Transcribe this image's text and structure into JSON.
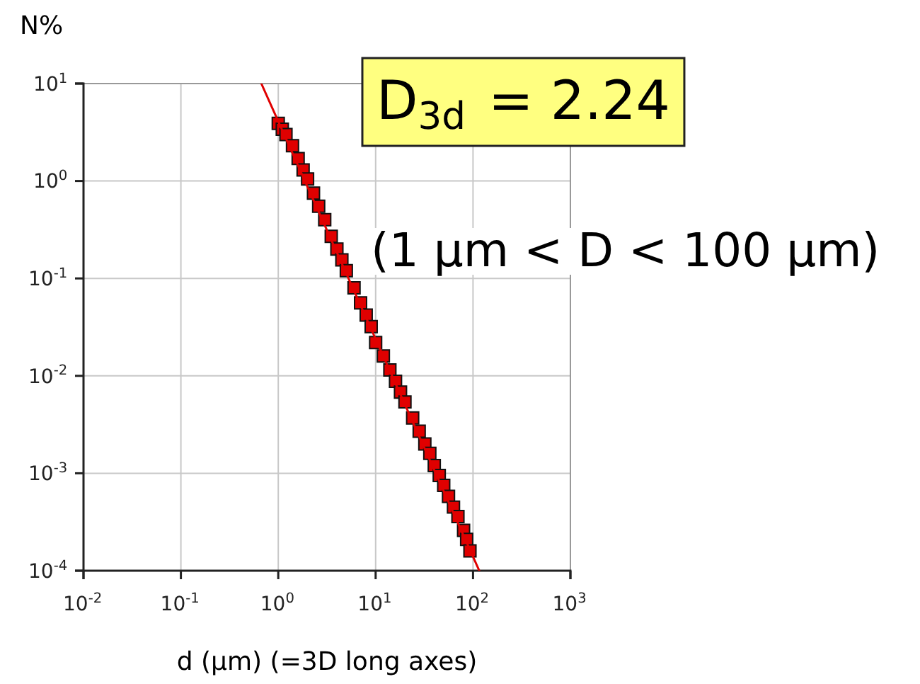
{
  "chart_data": {
    "type": "scatter",
    "ylabel": "N%",
    "xlabel": "d (μm) (=3D long axes)",
    "log": "xy",
    "grid": true,
    "marker": "square",
    "xlim": [
      0.01,
      1000
    ],
    "ylim": [
      0.0001,
      10
    ],
    "xticks": [
      {
        "value": 0.01,
        "label": "10$^{-2}$"
      },
      {
        "value": 0.1,
        "label": "10$^{-1}$"
      },
      {
        "value": 1,
        "label": "10$^{0}$"
      },
      {
        "value": 10,
        "label": "10$^{1}$"
      },
      {
        "value": 100,
        "label": "10$^{2}$"
      },
      {
        "value": 1000,
        "label": "10$^{3}$"
      }
    ],
    "yticks": [
      {
        "value": 0.0001,
        "label": "10$^{-4}$"
      },
      {
        "value": 0.001,
        "label": "10$^{-3}$"
      },
      {
        "value": 0.01,
        "label": "10$^{-2}$"
      },
      {
        "value": 0.1,
        "label": "10$^{-1}$"
      },
      {
        "value": 1,
        "label": "10$^{0}$"
      },
      {
        "value": 10,
        "label": "10$^{1}$"
      }
    ],
    "annotations": [
      "D$_{3d}$ = 2.24",
      "(1 μm < D < 100 μm)"
    ],
    "series": [
      {
        "color": "#e00000",
        "x": [
          1.0,
          1.1,
          1.2,
          1.4,
          1.6,
          1.8,
          2.0,
          2.3,
          2.6,
          3.0,
          3.5,
          4,
          4.5,
          5,
          6,
          7,
          8,
          9,
          10,
          12,
          14,
          16,
          18,
          20,
          24,
          28,
          32,
          36,
          40,
          45,
          50,
          56,
          63,
          70,
          80,
          86,
          93
        ],
        "values": [
          3.9,
          3.4,
          3.0,
          2.3,
          1.7,
          1.3,
          1.05,
          0.75,
          0.55,
          0.4,
          0.27,
          0.2,
          0.155,
          0.12,
          0.08,
          0.056,
          0.042,
          0.032,
          0.022,
          0.016,
          0.0115,
          0.0088,
          0.0068,
          0.0054,
          0.0037,
          0.0027,
          0.002,
          0.0016,
          0.0012,
          0.00095,
          0.00075,
          0.00058,
          0.00045,
          0.00036,
          0.00026,
          0.00021,
          0.00016
        ]
      },
      {
        "type": "line",
        "color": "#e00000",
        "marker": "none",
        "x": [
          0.67,
          116
        ],
        "values": [
          10,
          0.0001
        ]
      }
    ]
  }
}
